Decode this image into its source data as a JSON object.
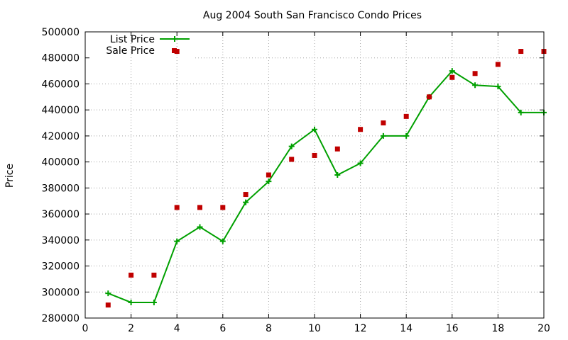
{
  "chart_data": {
    "type": "line",
    "title": "Aug 2004 South San Francisco Condo Prices",
    "xlabel": "",
    "ylabel": "Price",
    "xlim": [
      0,
      20
    ],
    "ylim": [
      280000,
      500000
    ],
    "x_ticks": [
      0,
      2,
      4,
      6,
      8,
      10,
      12,
      14,
      16,
      18,
      20
    ],
    "y_ticks": [
      280000,
      300000,
      320000,
      340000,
      360000,
      380000,
      400000,
      420000,
      440000,
      460000,
      480000,
      500000
    ],
    "grid": true,
    "legend_position": "top-left",
    "series": [
      {
        "name": "List Price",
        "style": "line+cross",
        "color": "#00a000",
        "x": [
          1,
          2,
          3,
          4,
          5,
          6,
          7,
          8,
          9,
          10,
          11,
          12,
          13,
          14,
          15,
          16,
          17,
          18,
          19,
          20
        ],
        "values": [
          299000,
          292000,
          292000,
          339000,
          350000,
          339000,
          369000,
          385000,
          412000,
          425000,
          390000,
          399000,
          420000,
          420000,
          450000,
          470000,
          459000,
          458000,
          438000,
          438000
        ]
      },
      {
        "name": "Sale Price",
        "style": "square",
        "color": "#c00000",
        "x": [
          1,
          2,
          3,
          4,
          4,
          5,
          6,
          7,
          8,
          9,
          10,
          11,
          12,
          13,
          14,
          15,
          16,
          17,
          18,
          19,
          20
        ],
        "values": [
          290000,
          313000,
          313000,
          485000,
          365000,
          365000,
          365000,
          375000,
          390000,
          402000,
          405000,
          410000,
          425000,
          430000,
          435000,
          450000,
          465000,
          468000,
          475000,
          485000,
          485000
        ]
      }
    ]
  }
}
